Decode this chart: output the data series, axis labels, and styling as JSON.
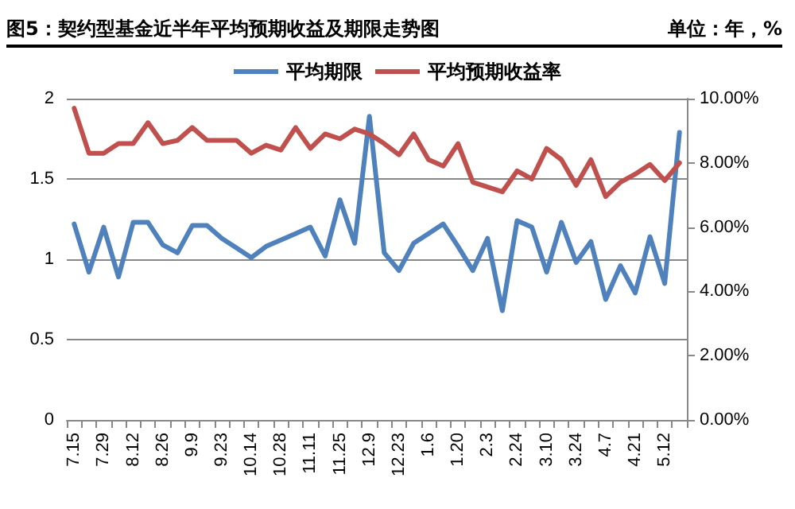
{
  "chart_data": {
    "type": "line",
    "title": "图5：契约型基金近半年平均预期收益及期限走势图",
    "annotations": [
      "单位：年，%"
    ],
    "categories": [
      "7.15",
      null,
      "7.29",
      null,
      "8.12",
      null,
      "8.26",
      null,
      "9.9",
      null,
      "9.23",
      null,
      "10.14",
      null,
      "10.28",
      null,
      "11.11",
      null,
      "11.25",
      null,
      "12.9",
      null,
      "12.23",
      null,
      "1.6",
      null,
      "1.20",
      null,
      "2.3",
      null,
      "2.24",
      null,
      "3.10",
      null,
      "3.24",
      null,
      "4.7",
      null,
      "4.21",
      null,
      "5.12",
      null
    ],
    "series": [
      {
        "name": "平均期限",
        "color": "#4f81bd",
        "values": [
          1.22,
          0.92,
          1.2,
          0.89,
          1.23,
          1.23,
          1.09,
          1.04,
          1.21,
          1.21,
          1.13,
          1.07,
          1.01,
          1.08,
          1.12,
          1.16,
          1.2,
          1.02,
          1.37,
          1.1,
          1.89,
          1.04,
          0.93,
          1.1,
          1.16,
          1.22,
          1.08,
          0.93,
          1.13,
          0.68,
          1.24,
          1.2,
          0.92,
          1.23,
          0.98,
          1.11,
          0.75,
          0.96,
          0.79,
          1.14,
          0.85,
          1.79
        ]
      },
      {
        "name": "平均预期收益率",
        "color": "#c0504d",
        "axis": "y2",
        "values": [
          9.7,
          8.3,
          8.3,
          8.6,
          8.6,
          9.25,
          8.6,
          8.7,
          9.1,
          8.7,
          8.7,
          8.7,
          8.3,
          8.55,
          8.4,
          9.1,
          8.45,
          8.9,
          8.75,
          9.05,
          8.9,
          8.6,
          8.25,
          8.9,
          8.1,
          7.9,
          8.6,
          7.4,
          7.25,
          7.1,
          7.75,
          7.5,
          8.45,
          8.1,
          7.3,
          8.1,
          6.95,
          7.4,
          7.65,
          7.95,
          7.45,
          8.0
        ]
      }
    ],
    "ylim": [
      0,
      2
    ],
    "yticks": [
      0,
      0.5,
      1,
      1.5,
      2
    ],
    "y2lim": [
      0,
      10
    ],
    "y2ticks": [
      {
        "value": 0,
        "label": "0.00%"
      },
      {
        "value": 2,
        "label": "2.00%"
      },
      {
        "value": 4,
        "label": "4.00%"
      },
      {
        "value": 6,
        "label": "6.00%"
      },
      {
        "value": 8,
        "label": "8.00%"
      },
      {
        "value": 10,
        "label": "10.00%"
      }
    ],
    "grid": "y",
    "legend": "top",
    "marker": "none",
    "line_style": "solid"
  }
}
